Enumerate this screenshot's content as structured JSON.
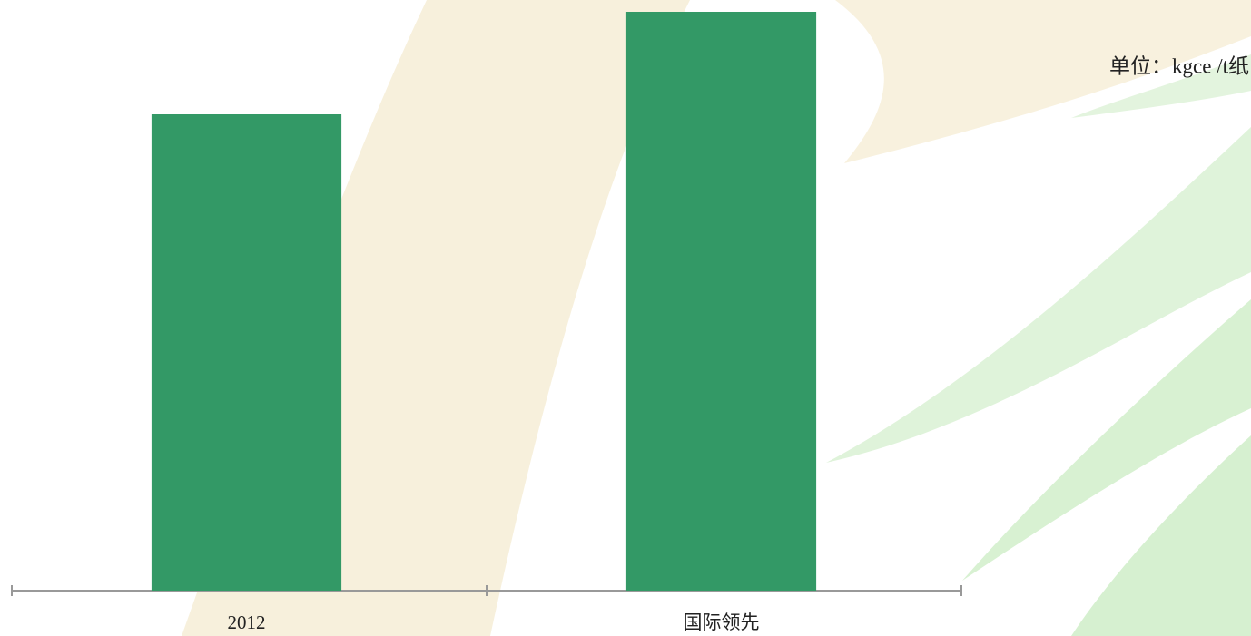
{
  "chart_data": {
    "type": "bar",
    "unit_label": "单位：kgce /t纸",
    "categories": [
      "2012",
      "国际领先"
    ],
    "values": [
      525,
      638
    ],
    "color": "#339966",
    "ylim": [
      0,
      638
    ]
  }
}
